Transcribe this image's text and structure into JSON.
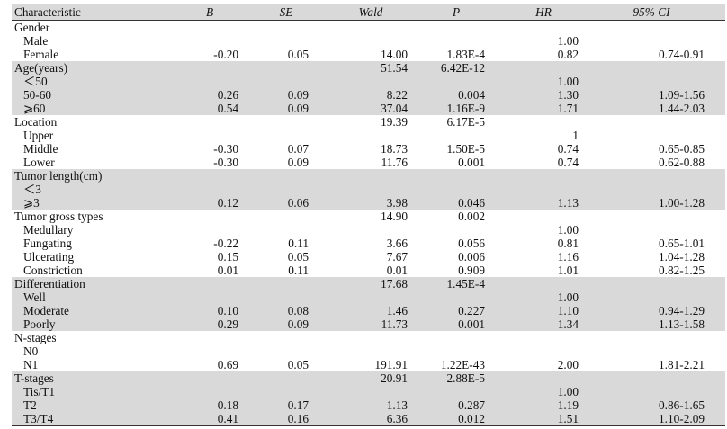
{
  "header": {
    "characteristic": "Characteristic",
    "b": "B",
    "se": "SE",
    "wald": "Wald",
    "p": "P",
    "hr": "HR",
    "ci": "95% CI"
  },
  "groups": [
    {
      "title": "Gender",
      "wald": "",
      "p": "",
      "shaded": false,
      "rows": [
        {
          "label": "Male",
          "b": "",
          "se": "",
          "wald": "",
          "p": "",
          "hr": "1.00",
          "ci": ""
        },
        {
          "label": "Female",
          "b": "-0.20",
          "se": "0.05",
          "wald": "14.00",
          "p": "1.83E-4",
          "hr": "0.82",
          "ci": "0.74-0.91"
        }
      ]
    },
    {
      "title": "Age(years)",
      "wald": "51.54",
      "p": "6.42E-12",
      "shaded": true,
      "rows": [
        {
          "label": "＜50",
          "b": "",
          "se": "",
          "wald": "",
          "p": "",
          "hr": "1.00",
          "ci": ""
        },
        {
          "label": "50-60",
          "b": "0.26",
          "se": "0.09",
          "wald": "8.22",
          "p": "0.004",
          "hr": "1.30",
          "ci": "1.09-1.56"
        },
        {
          "label": "⩾60",
          "b": "0.54",
          "se": "0.09",
          "wald": "37.04",
          "p": "1.16E-9",
          "hr": "1.71",
          "ci": "1.44-2.03"
        }
      ]
    },
    {
      "title": "Location",
      "wald": "19.39",
      "p": "6.17E-5",
      "shaded": false,
      "rows": [
        {
          "label": "Upper",
          "b": "",
          "se": "",
          "wald": "",
          "p": "",
          "hr": "1",
          "ci": ""
        },
        {
          "label": "Middle",
          "b": "-0.30",
          "se": "0.07",
          "wald": "18.73",
          "p": "1.50E-5",
          "hr": "0.74",
          "ci": "0.65-0.85"
        },
        {
          "label": "Lower",
          "b": "-0.30",
          "se": "0.09",
          "wald": "11.76",
          "p": "0.001",
          "hr": "0.74",
          "ci": "0.62-0.88"
        }
      ]
    },
    {
      "title": "Tumor length(cm)",
      "wald": "",
      "p": "",
      "shaded": true,
      "rows": [
        {
          "label": "＜3",
          "b": "",
          "se": "",
          "wald": "",
          "p": "",
          "hr": "",
          "ci": ""
        },
        {
          "label": "⩾3",
          "b": "0.12",
          "se": "0.06",
          "wald": "3.98",
          "p": "0.046",
          "hr": "1.13",
          "ci": "1.00-1.28"
        }
      ]
    },
    {
      "title": "Tumor gross types",
      "wald": "14.90",
      "p": "0.002",
      "shaded": false,
      "rows": [
        {
          "label": "Medullary",
          "b": "",
          "se": "",
          "wald": "",
          "p": "",
          "hr": "1.00",
          "ci": ""
        },
        {
          "label": "Fungating",
          "b": "-0.22",
          "se": "0.11",
          "wald": "3.66",
          "p": "0.056",
          "hr": "0.81",
          "ci": "0.65-1.01"
        },
        {
          "label": "Ulcerating",
          "b": "0.15",
          "se": "0.05",
          "wald": "7.67",
          "p": "0.006",
          "hr": "1.16",
          "ci": "1.04-1.28"
        },
        {
          "label": "Constriction",
          "b": "0.01",
          "se": "0.11",
          "wald": "0.01",
          "p": "0.909",
          "hr": "1.01",
          "ci": "0.82-1.25"
        }
      ]
    },
    {
      "title": "Differentiation",
      "wald": "17.68",
      "p": "1.45E-4",
      "shaded": true,
      "rows": [
        {
          "label": "Well",
          "b": "",
          "se": "",
          "wald": "",
          "p": "",
          "hr": "1.00",
          "ci": ""
        },
        {
          "label": "Moderate",
          "b": "0.10",
          "se": "0.08",
          "wald": "1.46",
          "p": "0.227",
          "hr": "1.10",
          "ci": "0.94-1.29"
        },
        {
          "label": "Poorly",
          "b": "0.29",
          "se": "0.09",
          "wald": "11.73",
          "p": "0.001",
          "hr": "1.34",
          "ci": "1.13-1.58"
        }
      ]
    },
    {
      "title": "N-stages",
      "wald": "",
      "p": "",
      "shaded": false,
      "rows": [
        {
          "label": "N0",
          "b": "",
          "se": "",
          "wald": "",
          "p": "",
          "hr": "",
          "ci": ""
        },
        {
          "label": "N1",
          "b": "0.69",
          "se": "0.05",
          "wald": "191.91",
          "p": "1.22E-43",
          "hr": "2.00",
          "ci": "1.81-2.21"
        }
      ]
    },
    {
      "title": "T-stages",
      "wald": "20.91",
      "p": "2.88E-5",
      "shaded": true,
      "rows": [
        {
          "label": "Tis/T1",
          "b": "",
          "se": "",
          "wald": "",
          "p": "",
          "hr": "1.00",
          "ci": ""
        },
        {
          "label": "T2",
          "b": "0.18",
          "se": "0.17",
          "wald": "1.13",
          "p": "0.287",
          "hr": "1.19",
          "ci": "0.86-1.65"
        },
        {
          "label": "T3/T4",
          "b": "0.41",
          "se": "0.16",
          "wald": "6.36",
          "p": "0.012",
          "hr": "1.51",
          "ci": "1.10-2.09"
        }
      ]
    }
  ]
}
